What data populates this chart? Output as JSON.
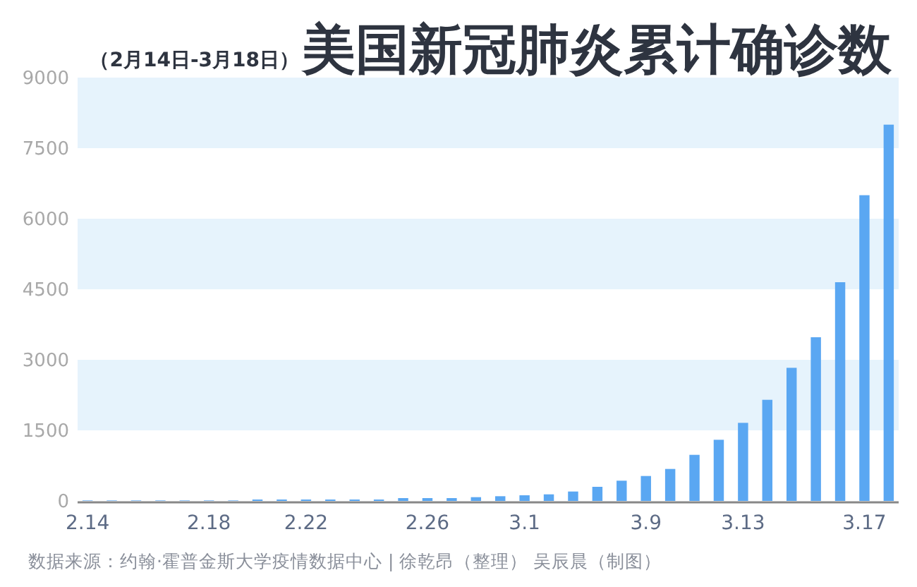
{
  "chart_data": {
    "type": "bar",
    "title": "美国新冠肺炎累计确诊数",
    "subtitle": "（2月14日-3月18日）",
    "categories": [
      "2.14",
      null,
      null,
      null,
      null,
      "2.18",
      null,
      null,
      null,
      "2.22",
      null,
      null,
      null,
      null,
      "2.26",
      null,
      null,
      null,
      "3.1",
      null,
      null,
      null,
      null,
      "3.9",
      null,
      null,
      null,
      "3.13",
      null,
      null,
      null,
      null,
      "3.17",
      null
    ],
    "values": [
      10,
      10,
      10,
      10,
      10,
      10,
      10,
      30,
      30,
      30,
      30,
      30,
      30,
      60,
      60,
      60,
      80,
      100,
      120,
      140,
      200,
      300,
      430,
      530,
      680,
      980,
      1300,
      1660,
      2150,
      2830,
      3480,
      4650,
      6500,
      8000
    ],
    "color": "#5aa7f2",
    "ylim": [
      0,
      9000
    ],
    "yticks": [
      0,
      1500,
      3000,
      4500,
      6000,
      7500,
      9000
    ],
    "bands": [
      {
        "axis": "y",
        "from": 1500,
        "to": 3000,
        "color": "#e6f3fc"
      },
      {
        "axis": "y",
        "from": 4500,
        "to": 6000,
        "color": "#e6f3fc"
      },
      {
        "axis": "y",
        "from": 7500,
        "to": 9000,
        "color": "#e6f3fc"
      }
    ],
    "annotations": [
      "数据来源：约翰·霍普金斯大学疫情数据中心 | 徐乾昂（整理） 吴辰晨（制图）"
    ]
  }
}
